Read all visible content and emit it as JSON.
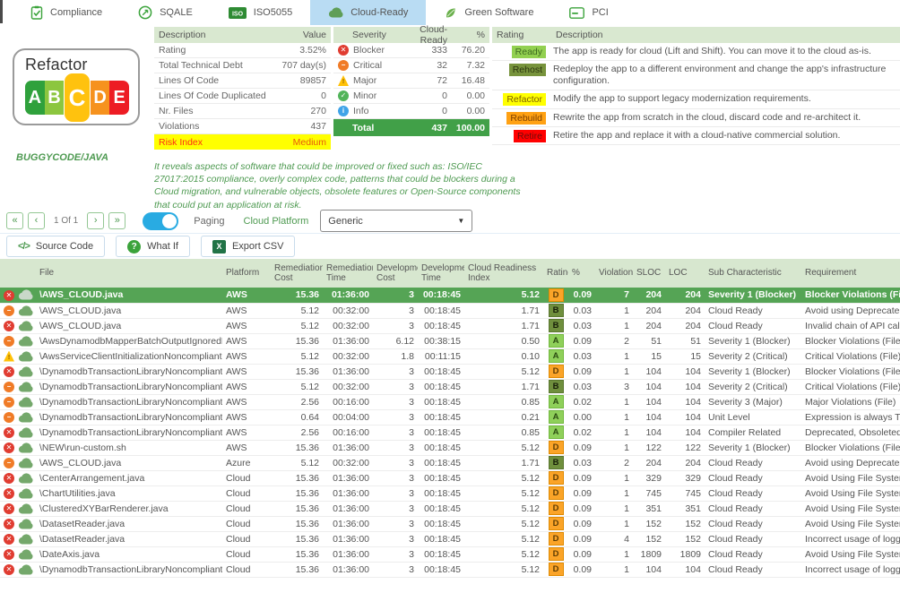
{
  "colors": {
    "accent_green": "#4e9a51",
    "header_green": "#d9e8d0",
    "selected_row_green": "#55a455",
    "total_row_green": "#41a048",
    "active_tab_blue": "#b9dcf3",
    "risk_yellow": "#ffff00",
    "blocker_red": "#e03c31",
    "critical_orange": "#f07b27",
    "major_yellow": "#ffc107",
    "minor_green": "#52b45a",
    "info_blue": "#3fa3e8",
    "cloud_green": "#74a86b"
  },
  "tabs": [
    {
      "label": "Compliance",
      "icon": "clipboard-check",
      "active": false
    },
    {
      "label": "SQALE",
      "icon": "gauge",
      "active": false
    },
    {
      "label": "ISO5055",
      "icon": "iso-badge",
      "active": false
    },
    {
      "label": "Cloud-Ready",
      "icon": "cloud",
      "active": true
    },
    {
      "label": "Green Software",
      "icon": "leaf",
      "active": false
    },
    {
      "label": "PCI",
      "icon": "card",
      "active": false
    }
  ],
  "summary": {
    "rating_card": {
      "title": "Refactor",
      "grades": [
        "A",
        "B",
        "C",
        "D",
        "E"
      ],
      "active_grade": "C"
    },
    "app_name": "BUGGYCODE/JAVA",
    "metrics": {
      "headers": [
        "Description",
        "Value"
      ],
      "rows": [
        [
          "Rating",
          "3.52%"
        ],
        [
          "Total Technical Debt",
          "707 day(s)"
        ],
        [
          "Lines Of Code",
          "89857"
        ],
        [
          "Lines Of Code Duplicated",
          "0"
        ],
        [
          "Nr. Files",
          "270"
        ],
        [
          "Violations",
          "437"
        ]
      ],
      "risk_row": {
        "label": "Risk Index",
        "value": "Medium"
      }
    },
    "severity_table": {
      "headers": [
        "Severity",
        "Cloud-Ready",
        "%"
      ],
      "rows": [
        {
          "icon": "blocker",
          "label": "Blocker",
          "count": "333",
          "pct": "76.20"
        },
        {
          "icon": "critical",
          "label": "Critical",
          "count": "32",
          "pct": "7.32"
        },
        {
          "icon": "major",
          "label": "Major",
          "count": "72",
          "pct": "16.48"
        },
        {
          "icon": "minor",
          "label": "Minor",
          "count": "0",
          "pct": "0.00"
        },
        {
          "icon": "info",
          "label": "Info",
          "count": "0",
          "pct": "0.00"
        }
      ],
      "total": {
        "label": "Total",
        "count": "437",
        "pct": "100.00"
      }
    },
    "ratings_legend": {
      "headers": [
        "Rating",
        "Description"
      ],
      "rows": [
        {
          "badge": "Ready",
          "bg": "#92d050",
          "fg": "#3f6b21",
          "text": "The app is ready for cloud (Lift and Shift). You can move it to the cloud as-is."
        },
        {
          "badge": "Rehost",
          "bg": "#77933c",
          "fg": "#2b350f",
          "text": "Redeploy the app to a different environment and change the app's infrastructure configuration."
        },
        {
          "badge": "Refactor",
          "bg": "#ffff00",
          "fg": "#7f6000",
          "text": "Modify the app to support legacy modernization requirements."
        },
        {
          "badge": "Rebuild",
          "bg": "#ffa113",
          "fg": "#7b3f00",
          "text": "Rewrite the app from scratch in the cloud, discard code and re-architect it."
        },
        {
          "badge": "Retire",
          "bg": "#ff0000",
          "fg": "#6e0b0b",
          "text": "Retire the app and replace it with a cloud-native commercial solution."
        }
      ]
    },
    "note": "It reveals aspects of software that could be improved or fixed such as: ISO/IEC 27017:2015 compliance, overly complex code, patterns that could be blockers during a Cloud migration, and vulnerable objects, obsolete features or Open-Source components that could put an application at risk."
  },
  "paging": {
    "page_label": "1 Of 1",
    "toggle_label": "Paging",
    "platform_label": "Cloud Platform",
    "platform_value": "Generic"
  },
  "actions": [
    {
      "label": "Source Code",
      "icon": "code"
    },
    {
      "label": "What If",
      "icon": "question"
    },
    {
      "label": "Export CSV",
      "icon": "excel"
    }
  ],
  "table": {
    "columns": [
      "File",
      "Platform",
      "Remediation Cost",
      "Remediation Time",
      "Development Cost",
      "Development Time",
      "Cloud Readiness Index",
      "Rating",
      "%",
      "Violations",
      "SLOC",
      "LOC",
      "Sub Characteristic",
      "Requirement"
    ],
    "rows": [
      {
        "sev": "blocker",
        "selected": true,
        "file": "\\AWS_CLOUD.java",
        "platform": "AWS",
        "rem_cost": "15.36",
        "rem_time": "01:36:00",
        "dev_cost": "3",
        "dev_time": "00:18:45",
        "cri": "5.12",
        "rating": "D",
        "pct": "0.09",
        "violations": "7",
        "sloc": "204",
        "loc": "204",
        "sub": "Severity 1 (Blocker)",
        "req": "Blocker Violations (File)"
      },
      {
        "sev": "critical",
        "selected": false,
        "file": "\\AWS_CLOUD.java",
        "platform": "AWS",
        "rem_cost": "5.12",
        "rem_time": "00:32:00",
        "dev_cost": "3",
        "dev_time": "00:18:45",
        "cri": "1.71",
        "rating": "B",
        "pct": "0.03",
        "violations": "1",
        "sloc": "204",
        "loc": "204",
        "sub": "Cloud Ready",
        "req": "Avoid using Deprecated Dy"
      },
      {
        "sev": "blocker",
        "selected": false,
        "file": "\\AWS_CLOUD.java",
        "platform": "AWS",
        "rem_cost": "5.12",
        "rem_time": "00:32:00",
        "dev_cost": "3",
        "dev_time": "00:18:45",
        "cri": "1.71",
        "rating": "B",
        "pct": "0.03",
        "violations": "1",
        "sloc": "204",
        "loc": "204",
        "sub": "Cloud Ready",
        "req": "Invalid chain of API calls"
      },
      {
        "sev": "critical",
        "selected": false,
        "file": "\\AwsDynamodbMapperBatchOutputIgnoredNoncompli",
        "platform": "AWS",
        "rem_cost": "15.36",
        "rem_time": "01:36:00",
        "dev_cost": "6.12",
        "dev_time": "00:38:15",
        "cri": "0.50",
        "rating": "A",
        "pct": "0.09",
        "violations": "2",
        "sloc": "51",
        "loc": "51",
        "sub": "Severity 1 (Blocker)",
        "req": "Blocker Violations (File)"
      },
      {
        "sev": "major",
        "selected": false,
        "file": "\\AwsServiceClientInitializationNoncompliant.java",
        "platform": "AWS",
        "rem_cost": "5.12",
        "rem_time": "00:32:00",
        "dev_cost": "1.8",
        "dev_time": "00:11:15",
        "cri": "0.10",
        "rating": "A",
        "pct": "0.03",
        "violations": "1",
        "sloc": "15",
        "loc": "15",
        "sub": "Severity 2 (Critical)",
        "req": "Critical Violations (File)"
      },
      {
        "sev": "blocker",
        "selected": false,
        "file": "\\DynamodbTransactionLibraryNoncompliant.java",
        "platform": "AWS",
        "rem_cost": "15.36",
        "rem_time": "01:36:00",
        "dev_cost": "3",
        "dev_time": "00:18:45",
        "cri": "5.12",
        "rating": "D",
        "pct": "0.09",
        "violations": "1",
        "sloc": "104",
        "loc": "104",
        "sub": "Severity 1 (Blocker)",
        "req": "Blocker Violations (File)"
      },
      {
        "sev": "critical",
        "selected": false,
        "file": "\\DynamodbTransactionLibraryNoncompliant.java",
        "platform": "AWS",
        "rem_cost": "5.12",
        "rem_time": "00:32:00",
        "dev_cost": "3",
        "dev_time": "00:18:45",
        "cri": "1.71",
        "rating": "B",
        "pct": "0.03",
        "violations": "3",
        "sloc": "104",
        "loc": "104",
        "sub": "Severity 2 (Critical)",
        "req": "Critical Violations (File)"
      },
      {
        "sev": "critical",
        "selected": false,
        "file": "\\DynamodbTransactionLibraryNoncompliant.java",
        "platform": "AWS",
        "rem_cost": "2.56",
        "rem_time": "00:16:00",
        "dev_cost": "3",
        "dev_time": "00:18:45",
        "cri": "0.85",
        "rating": "A",
        "pct": "0.02",
        "violations": "1",
        "sloc": "104",
        "loc": "104",
        "sub": "Severity 3 (Major)",
        "req": "Major Violations (File)"
      },
      {
        "sev": "critical",
        "selected": false,
        "file": "\\DynamodbTransactionLibraryNoncompliant.java",
        "platform": "AWS",
        "rem_cost": "0.64",
        "rem_time": "00:04:00",
        "dev_cost": "3",
        "dev_time": "00:18:45",
        "cri": "0.21",
        "rating": "A",
        "pct": "0.00",
        "violations": "1",
        "sloc": "104",
        "loc": "104",
        "sub": "Unit Level",
        "req": "Expression is always True/F"
      },
      {
        "sev": "blocker",
        "selected": false,
        "file": "\\DynamodbTransactionLibraryNoncompliant.java",
        "platform": "AWS",
        "rem_cost": "2.56",
        "rem_time": "00:16:00",
        "dev_cost": "3",
        "dev_time": "00:18:45",
        "cri": "0.85",
        "rating": "A",
        "pct": "0.02",
        "violations": "1",
        "sloc": "104",
        "loc": "104",
        "sub": "Compiler Related",
        "req": "Deprecated, Obsoleted, Su"
      },
      {
        "sev": "blocker",
        "selected": false,
        "file": "\\NEW\\run-custom.sh",
        "platform": "AWS",
        "rem_cost": "15.36",
        "rem_time": "01:36:00",
        "dev_cost": "3",
        "dev_time": "00:18:45",
        "cri": "5.12",
        "rating": "D",
        "pct": "0.09",
        "violations": "1",
        "sloc": "122",
        "loc": "122",
        "sub": "Severity 1 (Blocker)",
        "req": "Blocker Violations (File)"
      },
      {
        "sev": "critical",
        "selected": false,
        "file": "\\AWS_CLOUD.java",
        "platform": "Azure",
        "rem_cost": "5.12",
        "rem_time": "00:32:00",
        "dev_cost": "3",
        "dev_time": "00:18:45",
        "cri": "1.71",
        "rating": "B",
        "pct": "0.03",
        "violations": "2",
        "sloc": "204",
        "loc": "204",
        "sub": "Cloud Ready",
        "req": "Avoid using Deprecated Dy"
      },
      {
        "sev": "blocker",
        "selected": false,
        "file": "\\CenterArrangement.java",
        "platform": "Cloud",
        "rem_cost": "15.36",
        "rem_time": "01:36:00",
        "dev_cost": "3",
        "dev_time": "00:18:45",
        "cri": "5.12",
        "rating": "D",
        "pct": "0.09",
        "violations": "1",
        "sloc": "329",
        "loc": "329",
        "sub": "Cloud Ready",
        "req": "Avoid Using File System in"
      },
      {
        "sev": "blocker",
        "selected": false,
        "file": "\\ChartUtilities.java",
        "platform": "Cloud",
        "rem_cost": "15.36",
        "rem_time": "01:36:00",
        "dev_cost": "3",
        "dev_time": "00:18:45",
        "cri": "5.12",
        "rating": "D",
        "pct": "0.09",
        "violations": "1",
        "sloc": "745",
        "loc": "745",
        "sub": "Cloud Ready",
        "req": "Avoid Using File System in"
      },
      {
        "sev": "blocker",
        "selected": false,
        "file": "\\ClusteredXYBarRenderer.java",
        "platform": "Cloud",
        "rem_cost": "15.36",
        "rem_time": "01:36:00",
        "dev_cost": "3",
        "dev_time": "00:18:45",
        "cri": "5.12",
        "rating": "D",
        "pct": "0.09",
        "violations": "1",
        "sloc": "351",
        "loc": "351",
        "sub": "Cloud Ready",
        "req": "Avoid Using File System in"
      },
      {
        "sev": "blocker",
        "selected": false,
        "file": "\\DatasetReader.java",
        "platform": "Cloud",
        "rem_cost": "15.36",
        "rem_time": "01:36:00",
        "dev_cost": "3",
        "dev_time": "00:18:45",
        "cri": "5.12",
        "rating": "D",
        "pct": "0.09",
        "violations": "1",
        "sloc": "152",
        "loc": "152",
        "sub": "Cloud Ready",
        "req": "Avoid Using File System in"
      },
      {
        "sev": "blocker",
        "selected": false,
        "file": "\\DatasetReader.java",
        "platform": "Cloud",
        "rem_cost": "15.36",
        "rem_time": "01:36:00",
        "dev_cost": "3",
        "dev_time": "00:18:45",
        "cri": "5.12",
        "rating": "D",
        "pct": "0.09",
        "violations": "4",
        "sloc": "152",
        "loc": "152",
        "sub": "Cloud Ready",
        "req": "Incorrect usage of logging"
      },
      {
        "sev": "blocker",
        "selected": false,
        "file": "\\DateAxis.java",
        "platform": "Cloud",
        "rem_cost": "15.36",
        "rem_time": "01:36:00",
        "dev_cost": "3",
        "dev_time": "00:18:45",
        "cri": "5.12",
        "rating": "D",
        "pct": "0.09",
        "violations": "1",
        "sloc": "1809",
        "loc": "1809",
        "sub": "Cloud Ready",
        "req": "Avoid Using File System in"
      },
      {
        "sev": "blocker",
        "selected": false,
        "file": "\\DynamodbTransactionLibraryNoncompliant.java",
        "platform": "Cloud",
        "rem_cost": "15.36",
        "rem_time": "01:36:00",
        "dev_cost": "3",
        "dev_time": "00:18:45",
        "cri": "5.12",
        "rating": "D",
        "pct": "0.09",
        "violations": "1",
        "sloc": "104",
        "loc": "104",
        "sub": "Cloud Ready",
        "req": "Incorrect usage of logging"
      }
    ]
  }
}
